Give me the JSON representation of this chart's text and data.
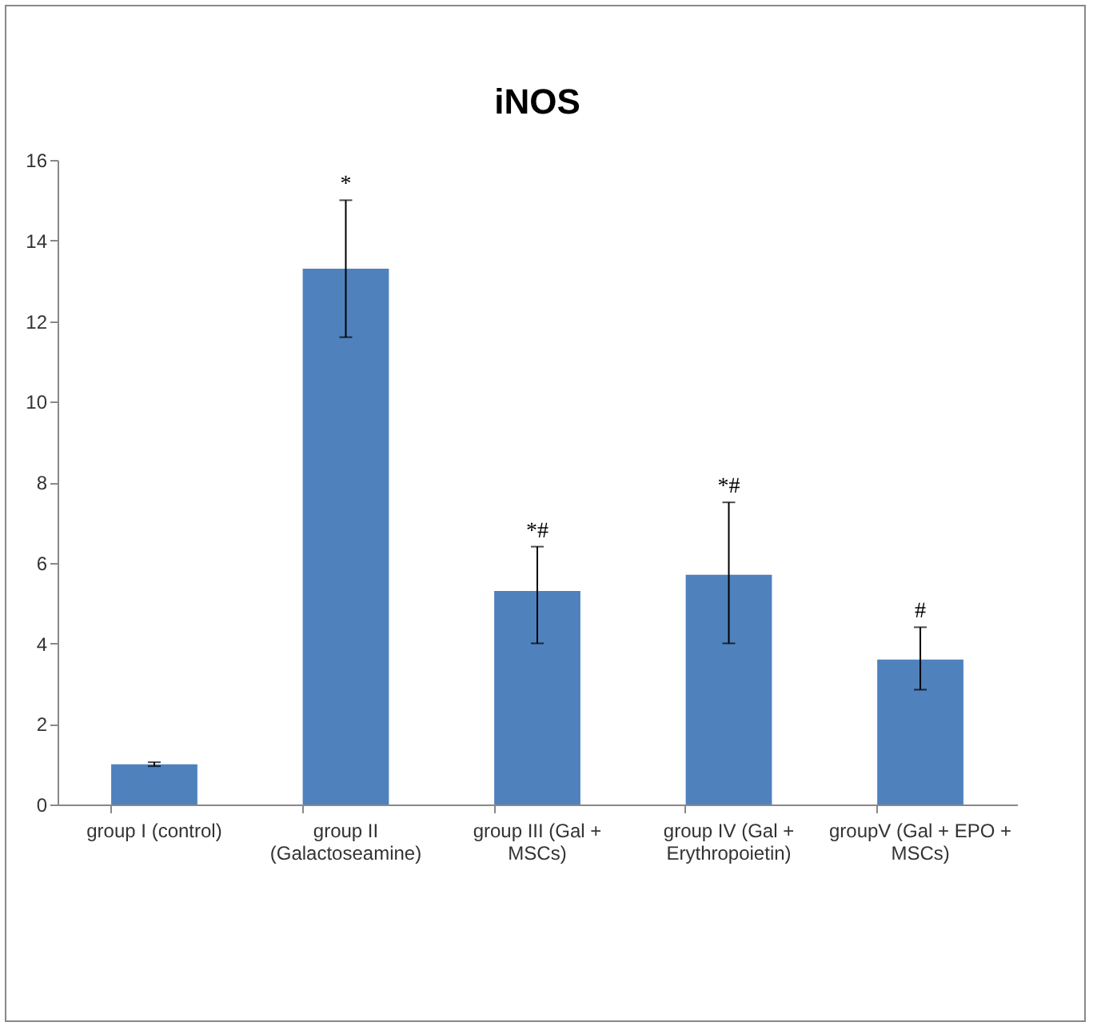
{
  "chart_data": {
    "type": "bar",
    "title": "iNOS",
    "categories": [
      "group I (control)",
      "group II (Galactoseamine)",
      "group III (Gal + MSCs)",
      "group IV (Gal + Erythropoietin)",
      "groupV (Gal + EPO + MSCs)"
    ],
    "values": [
      1.0,
      13.3,
      5.3,
      5.7,
      3.6
    ],
    "errors": [
      0.05,
      [
        11.6,
        15
      ],
      [
        4.0,
        6.4
      ],
      [
        4.0,
        7.5
      ],
      [
        2.85,
        4.4
      ]
    ],
    "color": "#4f81bd",
    "ylim": [
      0,
      16
    ],
    "yticks": [
      0,
      2,
      4,
      6,
      8,
      10,
      12,
      14,
      16
    ],
    "grid": false,
    "annotations": [
      {
        "text": "*",
        "x": "group II (Galactoseamine)",
        "y": 15
      },
      {
        "text": "*#",
        "x": "group III (Gal + MSCs)",
        "y": 6.4
      },
      {
        "text": "*#",
        "x": "group IV (Gal + Erythropoietin)",
        "y": 7.5
      },
      {
        "text": "#",
        "x": "groupV (Gal + EPO + MSCs)",
        "y": 4.4
      }
    ]
  }
}
